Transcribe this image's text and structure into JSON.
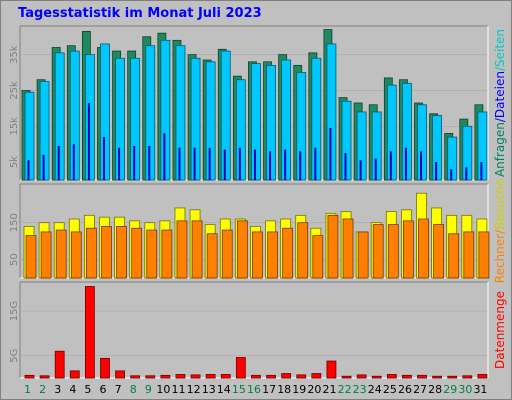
{
  "title": "Tagesstatistik im Monat Juli 2023",
  "colors": {
    "anfragen": "#1f8a60",
    "seiten": "#00c8ff",
    "dateien": "#0000c8",
    "besuche": "#ffff00",
    "rechner": "#ff8000",
    "datenmenge": "#ff0000",
    "weekend": "#008040",
    "weekday": "#000000",
    "rl_anfragen": "#008060",
    "rl_seiten": "#00c8c8",
    "rl_dateien": "#0000ff",
    "rl_besuche": "#d0d000",
    "rl_rechner": "#ff8000",
    "rl_datenmenge": "#ff0000"
  },
  "chart_data": [
    {
      "type": "bar",
      "panel": "top",
      "categories": [
        "1",
        "2",
        "3",
        "4",
        "5",
        "6",
        "7",
        "8",
        "9",
        "10",
        "11",
        "12",
        "13",
        "14",
        "15",
        "16",
        "17",
        "18",
        "19",
        "20",
        "21",
        "22",
        "23",
        "24",
        "25",
        "26",
        "27",
        "28",
        "29",
        "30",
        "31"
      ],
      "y_ticks": [
        "5k",
        "15k",
        "25k",
        "35k"
      ],
      "y_tick_values": [
        5000,
        15000,
        25000,
        35000
      ],
      "ylim": [
        0,
        43000
      ],
      "right_label_parts": [
        "Anfragen",
        "/",
        "Dateien",
        "/",
        "Seiten"
      ],
      "series": [
        {
          "name": "Anfragen",
          "values": [
            25000,
            28000,
            37000,
            37500,
            41500,
            37000,
            36000,
            36000,
            40000,
            41000,
            39000,
            35000,
            33500,
            36500,
            29000,
            33000,
            33000,
            35000,
            32000,
            35500,
            42000,
            23000,
            21500,
            21000,
            28500,
            28000,
            21500,
            18500,
            13000,
            17000,
            21000
          ]
        },
        {
          "name": "Seiten",
          "values": [
            24500,
            27500,
            35500,
            36000,
            35000,
            38000,
            34000,
            34000,
            37500,
            39000,
            37500,
            34000,
            33000,
            36000,
            28000,
            32500,
            32000,
            33500,
            30000,
            34000,
            38000,
            22000,
            19000,
            19000,
            26500,
            27000,
            21000,
            18000,
            12000,
            15000,
            19000
          ]
        },
        {
          "name": "Dateien",
          "values": [
            5500,
            7000,
            9500,
            10000,
            21500,
            12000,
            9000,
            9500,
            9500,
            13000,
            9000,
            9000,
            9000,
            8500,
            9000,
            8500,
            8000,
            8500,
            8000,
            9000,
            14500,
            7500,
            5500,
            6000,
            8000,
            9000,
            8000,
            5000,
            3000,
            3500,
            5000
          ]
        }
      ]
    },
    {
      "type": "bar",
      "panel": "middle",
      "categories": [
        "1",
        "2",
        "3",
        "4",
        "5",
        "6",
        "7",
        "8",
        "9",
        "10",
        "11",
        "12",
        "13",
        "14",
        "15",
        "16",
        "17",
        "18",
        "19",
        "20",
        "21",
        "22",
        "23",
        "24",
        "25",
        "26",
        "27",
        "28",
        "29",
        "30",
        "31"
      ],
      "y_ticks": [
        "50",
        "150"
      ],
      "y_tick_values": [
        50,
        150
      ],
      "ylim": [
        0,
        255
      ],
      "right_label_parts": [
        "Rechner",
        "/",
        "Besuche"
      ],
      "series": [
        {
          "name": "Besuche",
          "values": [
            140,
            150,
            150,
            160,
            170,
            165,
            165,
            155,
            150,
            155,
            190,
            185,
            145,
            160,
            160,
            140,
            155,
            160,
            170,
            135,
            175,
            180,
            125,
            150,
            180,
            185,
            230,
            190,
            170,
            170,
            160
          ]
        },
        {
          "name": "Rechner",
          "values": [
            115,
            125,
            130,
            125,
            135,
            140,
            140,
            135,
            130,
            130,
            155,
            155,
            120,
            130,
            155,
            125,
            125,
            135,
            150,
            115,
            170,
            160,
            125,
            145,
            145,
            155,
            160,
            145,
            120,
            125,
            125
          ]
        }
      ]
    },
    {
      "type": "bar",
      "panel": "bottom",
      "categories": [
        "1",
        "2",
        "3",
        "4",
        "5",
        "6",
        "7",
        "8",
        "9",
        "10",
        "11",
        "12",
        "13",
        "14",
        "15",
        "16",
        "17",
        "18",
        "19",
        "20",
        "21",
        "22",
        "23",
        "24",
        "25",
        "26",
        "27",
        "28",
        "29",
        "30",
        "31"
      ],
      "y_ticks": [
        "5G",
        "15G"
      ],
      "y_tick_values": [
        5,
        15
      ],
      "ylim": [
        0,
        21.5
      ],
      "right_label_parts": [
        "Datenmenge"
      ],
      "series": [
        {
          "name": "Datenmenge",
          "values": [
            0.6,
            0.5,
            6.0,
            1.6,
            20.5,
            4.4,
            1.6,
            0.5,
            0.5,
            0.6,
            0.8,
            0.7,
            0.8,
            0.8,
            4.6,
            0.6,
            0.6,
            1.0,
            0.7,
            1.0,
            3.8,
            0.4,
            0.7,
            0.4,
            0.8,
            0.6,
            0.6,
            0.4,
            0.4,
            0.5,
            0.8
          ]
        }
      ]
    }
  ]
}
